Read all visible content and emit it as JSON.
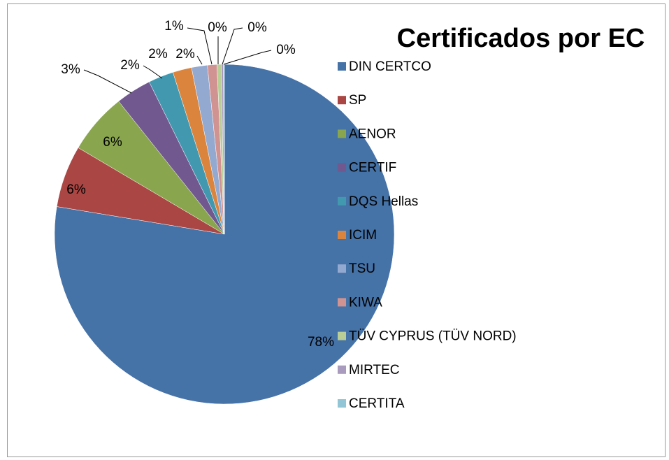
{
  "chart_data": {
    "type": "pie",
    "title": "Certificados por EC",
    "categories": [
      "DIN CERTCO",
      "SP",
      "AENOR",
      "CERTIF",
      "DQS Hellas",
      "ICIM",
      "TSU",
      "KIWA",
      "TÜV CYPRUS (TÜV NORD)",
      "MIRTEC",
      "CERTITA"
    ],
    "values": [
      77.6,
      5.9,
      5.8,
      3.4,
      2.4,
      1.8,
      1.5,
      0.9,
      0.4,
      0.2,
      0.1
    ],
    "value_labels": [
      "78%",
      "6%",
      "6%",
      "3%",
      "2%",
      "2%",
      "2%",
      "1%",
      "0%",
      "0%",
      "0%"
    ],
    "colors": [
      "#4572a7",
      "#aa4643",
      "#89a54e",
      "#71588f",
      "#4198af",
      "#db843d",
      "#93a9cf",
      "#d19392",
      "#b9cd96",
      "#a99bbd",
      "#92c5d6"
    ],
    "legend": "right"
  }
}
